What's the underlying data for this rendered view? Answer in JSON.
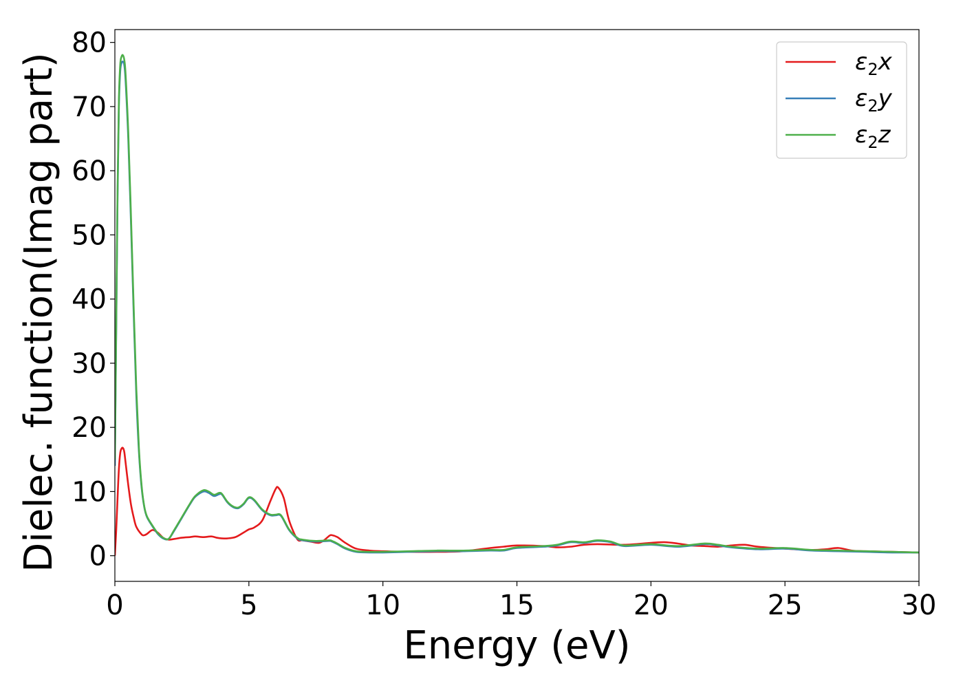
{
  "chart_data": {
    "type": "line",
    "title": "",
    "xlabel": "Energy (eV)",
    "ylabel": "Dielec. function(Imag part)",
    "xlim": [
      0,
      30
    ],
    "ylim": [
      -4,
      82
    ],
    "xticks": [
      0,
      5,
      10,
      15,
      20,
      25,
      30
    ],
    "yticks": [
      0,
      10,
      20,
      30,
      40,
      50,
      60,
      70,
      80
    ],
    "grid": false,
    "legend_position": "top-right",
    "series": [
      {
        "name": "ε2x",
        "legend_base": "ε",
        "legend_sub": "2",
        "legend_suffix": "x",
        "color": "#e41a1c",
        "x": [
          0,
          0.05,
          0.1,
          0.15,
          0.2,
          0.25,
          0.3,
          0.35,
          0.4,
          0.5,
          0.6,
          0.7,
          0.8,
          1.0,
          1.1,
          1.2,
          1.4,
          1.6,
          1.8,
          2.0,
          2.2,
          2.5,
          2.8,
          3.0,
          3.3,
          3.6,
          3.8,
          4.0,
          4.2,
          4.5,
          4.8,
          5.0,
          5.2,
          5.5,
          5.8,
          6.0,
          6.1,
          6.3,
          6.5,
          6.8,
          7.0,
          7.3,
          7.6,
          7.8,
          8.0,
          8.1,
          8.3,
          8.6,
          9.0,
          9.5,
          10.0,
          11.0,
          12.0,
          13.0,
          14.0,
          14.5,
          15.0,
          16.0,
          16.5,
          17.0,
          17.5,
          18.0,
          19.0,
          20.0,
          20.5,
          21.0,
          21.5,
          22.0,
          22.5,
          23.0,
          23.5,
          24.0,
          25.0,
          26.0,
          26.5,
          27.0,
          27.5,
          28.0,
          29.0,
          30.0
        ],
        "values": [
          0,
          4,
          9,
          13.5,
          16,
          16.7,
          16.8,
          16.2,
          14.5,
          11,
          8,
          6,
          4.5,
          3.3,
          3.2,
          3.4,
          4.0,
          3.6,
          2.8,
          2.5,
          2.6,
          2.8,
          2.9,
          3.0,
          2.9,
          3.0,
          2.8,
          2.7,
          2.7,
          2.9,
          3.6,
          4.1,
          4.4,
          5.5,
          8.5,
          10.4,
          10.6,
          9.0,
          5.5,
          2.6,
          2.4,
          2.2,
          2.0,
          2.4,
          3.1,
          3.2,
          2.9,
          2.0,
          1.1,
          0.8,
          0.7,
          0.6,
          0.6,
          0.7,
          1.2,
          1.4,
          1.6,
          1.5,
          1.3,
          1.4,
          1.7,
          1.8,
          1.7,
          2.0,
          2.1,
          1.9,
          1.6,
          1.5,
          1.4,
          1.6,
          1.7,
          1.4,
          1.1,
          0.9,
          1.0,
          1.2,
          0.8,
          0.7,
          0.6,
          0.5
        ]
      },
      {
        "name": "ε2y",
        "legend_base": "ε",
        "legend_sub": "2",
        "legend_suffix": "y",
        "color": "#377eb8",
        "x": [
          0,
          0.05,
          0.1,
          0.15,
          0.2,
          0.25,
          0.3,
          0.35,
          0.4,
          0.5,
          0.6,
          0.7,
          0.8,
          0.9,
          1.0,
          1.1,
          1.2,
          1.4,
          1.6,
          1.8,
          2.0,
          2.2,
          2.5,
          2.8,
          3.0,
          3.3,
          3.5,
          3.7,
          3.9,
          4.0,
          4.2,
          4.4,
          4.6,
          4.8,
          5.0,
          5.2,
          5.5,
          5.8,
          6.0,
          6.2,
          6.5,
          6.8,
          7.0,
          7.5,
          8.0,
          8.1,
          8.3,
          8.6,
          9.0,
          9.5,
          10.0,
          11.0,
          12.0,
          13.0,
          14.0,
          14.5,
          15.0,
          16.0,
          16.5,
          17.0,
          17.5,
          18.0,
          18.5,
          19.0,
          20.0,
          21.0,
          22.0,
          22.5,
          23.0,
          24.0,
          25.0,
          26.0,
          27.0,
          28.0,
          29.0,
          30.0
        ],
        "values": [
          14,
          35,
          56,
          70,
          75.5,
          76.8,
          77,
          76.5,
          74,
          65,
          52,
          38,
          25,
          16,
          10.5,
          7.5,
          6.0,
          4.6,
          3.4,
          2.7,
          2.6,
          3.8,
          5.9,
          8.0,
          9.2,
          10.0,
          9.8,
          9.3,
          9.6,
          9.5,
          8.3,
          7.6,
          7.4,
          8.0,
          9.0,
          8.6,
          7.1,
          6.3,
          6.3,
          6.2,
          4.0,
          2.7,
          2.4,
          2.2,
          2.3,
          2.2,
          1.8,
          1.1,
          0.6,
          0.5,
          0.5,
          0.6,
          0.7,
          0.7,
          0.8,
          0.8,
          1.2,
          1.4,
          1.6,
          2.1,
          2.0,
          2.3,
          2.1,
          1.5,
          1.7,
          1.4,
          1.8,
          1.6,
          1.3,
          1.0,
          1.1,
          0.8,
          0.7,
          0.6,
          0.5,
          0.5
        ]
      },
      {
        "name": "ε2z",
        "legend_base": "ε",
        "legend_sub": "2",
        "legend_suffix": "z",
        "color": "#4daf4a",
        "x": [
          0,
          0.05,
          0.1,
          0.15,
          0.2,
          0.25,
          0.3,
          0.35,
          0.4,
          0.5,
          0.6,
          0.7,
          0.8,
          0.9,
          1.0,
          1.1,
          1.2,
          1.4,
          1.6,
          1.8,
          2.0,
          2.2,
          2.5,
          2.8,
          3.0,
          3.3,
          3.5,
          3.7,
          3.9,
          4.0,
          4.2,
          4.4,
          4.6,
          4.8,
          5.0,
          5.2,
          5.5,
          5.8,
          6.0,
          6.2,
          6.5,
          6.8,
          7.0,
          7.5,
          8.0,
          8.1,
          8.3,
          8.6,
          9.0,
          9.5,
          10.0,
          11.0,
          12.0,
          13.0,
          14.0,
          14.5,
          15.0,
          16.0,
          16.5,
          17.0,
          17.5,
          18.0,
          18.5,
          19.0,
          20.0,
          21.0,
          22.0,
          22.5,
          23.0,
          24.0,
          25.0,
          26.0,
          27.0,
          28.0,
          29.0,
          30.0
        ],
        "values": [
          15,
          36,
          57,
          71,
          76.5,
          77.8,
          78,
          77.3,
          75,
          66,
          53,
          39,
          26,
          16.5,
          10.8,
          7.6,
          6.1,
          4.7,
          3.5,
          2.8,
          2.6,
          3.9,
          6.0,
          8.1,
          9.3,
          10.2,
          10.0,
          9.5,
          9.8,
          9.6,
          8.4,
          7.7,
          7.5,
          8.1,
          9.1,
          8.7,
          7.2,
          6.4,
          6.4,
          6.3,
          4.1,
          2.8,
          2.5,
          2.3,
          2.4,
          2.3,
          1.9,
          1.2,
          0.7,
          0.6,
          0.6,
          0.7,
          0.8,
          0.8,
          0.9,
          0.9,
          1.3,
          1.5,
          1.7,
          2.2,
          2.1,
          2.4,
          2.2,
          1.6,
          1.8,
          1.5,
          1.9,
          1.7,
          1.4,
          1.1,
          1.2,
          0.9,
          0.8,
          0.7,
          0.6,
          0.5
        ]
      }
    ]
  }
}
